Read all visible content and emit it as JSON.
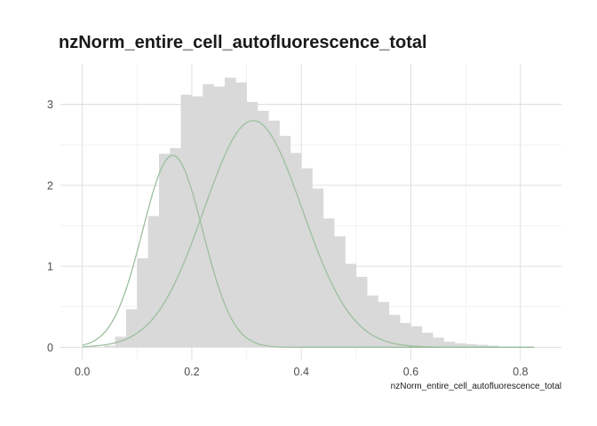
{
  "chart_data": {
    "type": "bar",
    "title": "nzNorm_entire_cell_autofluorescence_total",
    "xlabel": "nzNorm_entire_cell_autofluorescence_total",
    "ylabel": "",
    "xlim": [
      -0.04,
      0.875
    ],
    "ylim": [
      -0.15,
      3.5
    ],
    "x_ticks": [
      0.0,
      0.2,
      0.4,
      0.6,
      0.8
    ],
    "y_ticks": [
      0,
      1,
      2,
      3
    ],
    "x_tick_labels": [
      "0.0",
      "0.2",
      "0.4",
      "0.6",
      "0.8"
    ],
    "y_tick_labels": [
      "0",
      "1",
      "2",
      "3"
    ],
    "grid": true,
    "legend": "none",
    "histogram": {
      "bin_start": 0.0,
      "bin_width": 0.02,
      "values": [
        0.0,
        0.0,
        0.02,
        0.13,
        0.47,
        1.1,
        1.62,
        2.39,
        2.46,
        3.12,
        3.1,
        3.25,
        3.22,
        3.33,
        3.27,
        3.03,
        2.92,
        2.8,
        2.61,
        2.4,
        2.21,
        1.96,
        1.59,
        1.37,
        1.03,
        0.87,
        0.64,
        0.56,
        0.4,
        0.3,
        0.26,
        0.18,
        0.12,
        0.07,
        0.05,
        0.04,
        0.03,
        0.02,
        0.01,
        0.01,
        0.0,
        0.0
      ],
      "color": "#d9d9d9"
    },
    "series": [
      {
        "type": "normal",
        "mean": 0.165,
        "sd": 0.055,
        "peak": 2.37
      },
      {
        "type": "normal",
        "mean": 0.312,
        "sd": 0.09,
        "peak": 2.8
      }
    ],
    "curve_color": "#9dbf9e",
    "curve_x_range": [
      0.0,
      0.825
    ]
  }
}
